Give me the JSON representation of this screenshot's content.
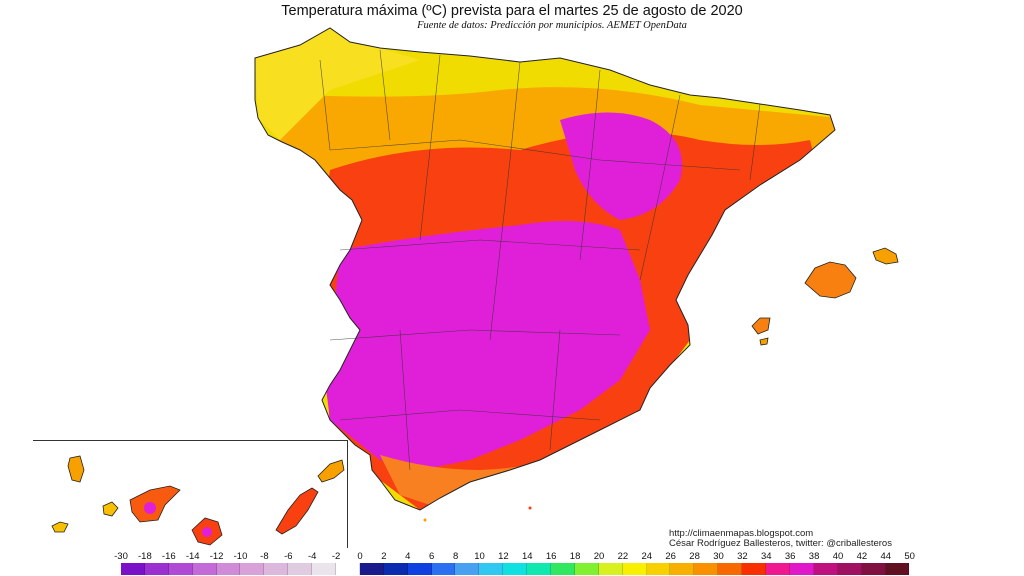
{
  "title": "Temperatura máxima (ºC) prevista para el martes 25 de agosto de 2020",
  "subtitle": "Fuente de datos: Predicción por municipios. AEMET OpenData",
  "credits": {
    "url": "http://climaenmapas.blogspot.com",
    "author": "César Rodríguez Ballesteros, twitter: @criballesteros"
  },
  "legend": {
    "labels": [
      "-30",
      "-18",
      "-16",
      "-14",
      "-12",
      "-10",
      "-8",
      "-6",
      "-4",
      "-2",
      "0",
      "2",
      "4",
      "6",
      "8",
      "10",
      "12",
      "14",
      "16",
      "18",
      "20",
      "22",
      "24",
      "26",
      "28",
      "30",
      "32",
      "34",
      "36",
      "38",
      "40",
      "42",
      "44",
      "50"
    ],
    "colors": [
      "#7a10c8",
      "#9b2fd0",
      "#b04ad6",
      "#c46ad8",
      "#d08ad8",
      "#d8a2d8",
      "#dcb8dc",
      "#e0cce0",
      "#ece4ec",
      "#ffffff",
      "#1a1a8c",
      "#0a2ab0",
      "#1040e0",
      "#2a70f0",
      "#48a0f0",
      "#30c8f0",
      "#10e0e0",
      "#10e8b0",
      "#30e860",
      "#80f030",
      "#d8f020",
      "#f8f000",
      "#f8d000",
      "#f8b000",
      "#f89000",
      "#f86800",
      "#f83000",
      "#f01890",
      "#e018c8",
      "#c01080",
      "#a01060",
      "#801040",
      "#601020"
    ]
  },
  "map": {
    "region": "España peninsular, Baleares y Canarias",
    "palette": {
      "cool_coast": "#f0e000",
      "warm": "#f8a000",
      "hot": "#f85a10",
      "very_hot": "#f81818",
      "extreme": "#e020d0"
    }
  }
}
